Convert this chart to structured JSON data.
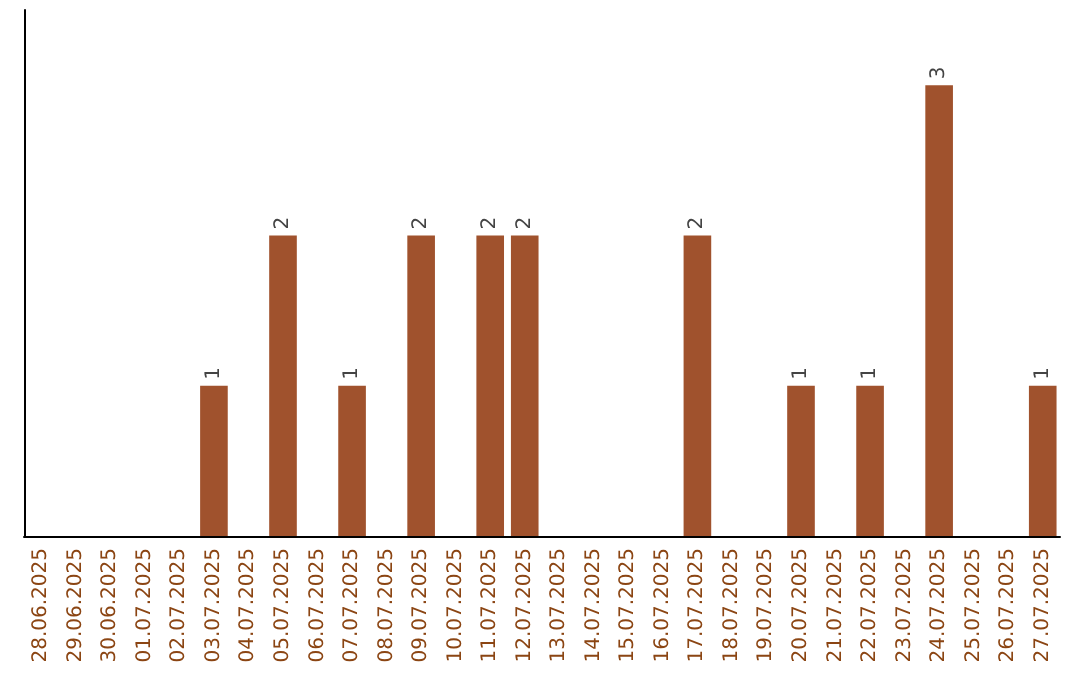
{
  "chart_data": {
    "type": "bar",
    "categories": [
      "28.06.2025",
      "29.06.2025",
      "30.06.2025",
      "01.07.2025",
      "02.07.2025",
      "03.07.2025",
      "04.07.2025",
      "05.07.2025",
      "06.07.2025",
      "07.07.2025",
      "08.07.2025",
      "09.07.2025",
      "10.07.2025",
      "11.07.2025",
      "12.07.2025",
      "13.07.2025",
      "14.07.2025",
      "15.07.2025",
      "16.07.2025",
      "17.07.2025",
      "18.07.2025",
      "19.07.2025",
      "20.07.2025",
      "21.07.2025",
      "22.07.2025",
      "23.07.2025",
      "24.07.2025",
      "25.07.2025",
      "26.07.2025",
      "27.07.2025"
    ],
    "values": [
      0,
      0,
      0,
      0,
      0,
      1,
      0,
      2,
      0,
      1,
      0,
      2,
      0,
      2,
      2,
      0,
      0,
      0,
      0,
      2,
      0,
      0,
      1,
      0,
      1,
      0,
      3,
      0,
      0,
      1
    ],
    "value_labels": [
      null,
      null,
      null,
      null,
      null,
      "1",
      null,
      "2",
      null,
      "1",
      null,
      "2",
      null,
      "2",
      "2",
      null,
      null,
      null,
      null,
      "2",
      null,
      null,
      "1",
      null,
      "1",
      null,
      "3",
      null,
      null,
      "1"
    ],
    "color": "#a0522d"
  }
}
